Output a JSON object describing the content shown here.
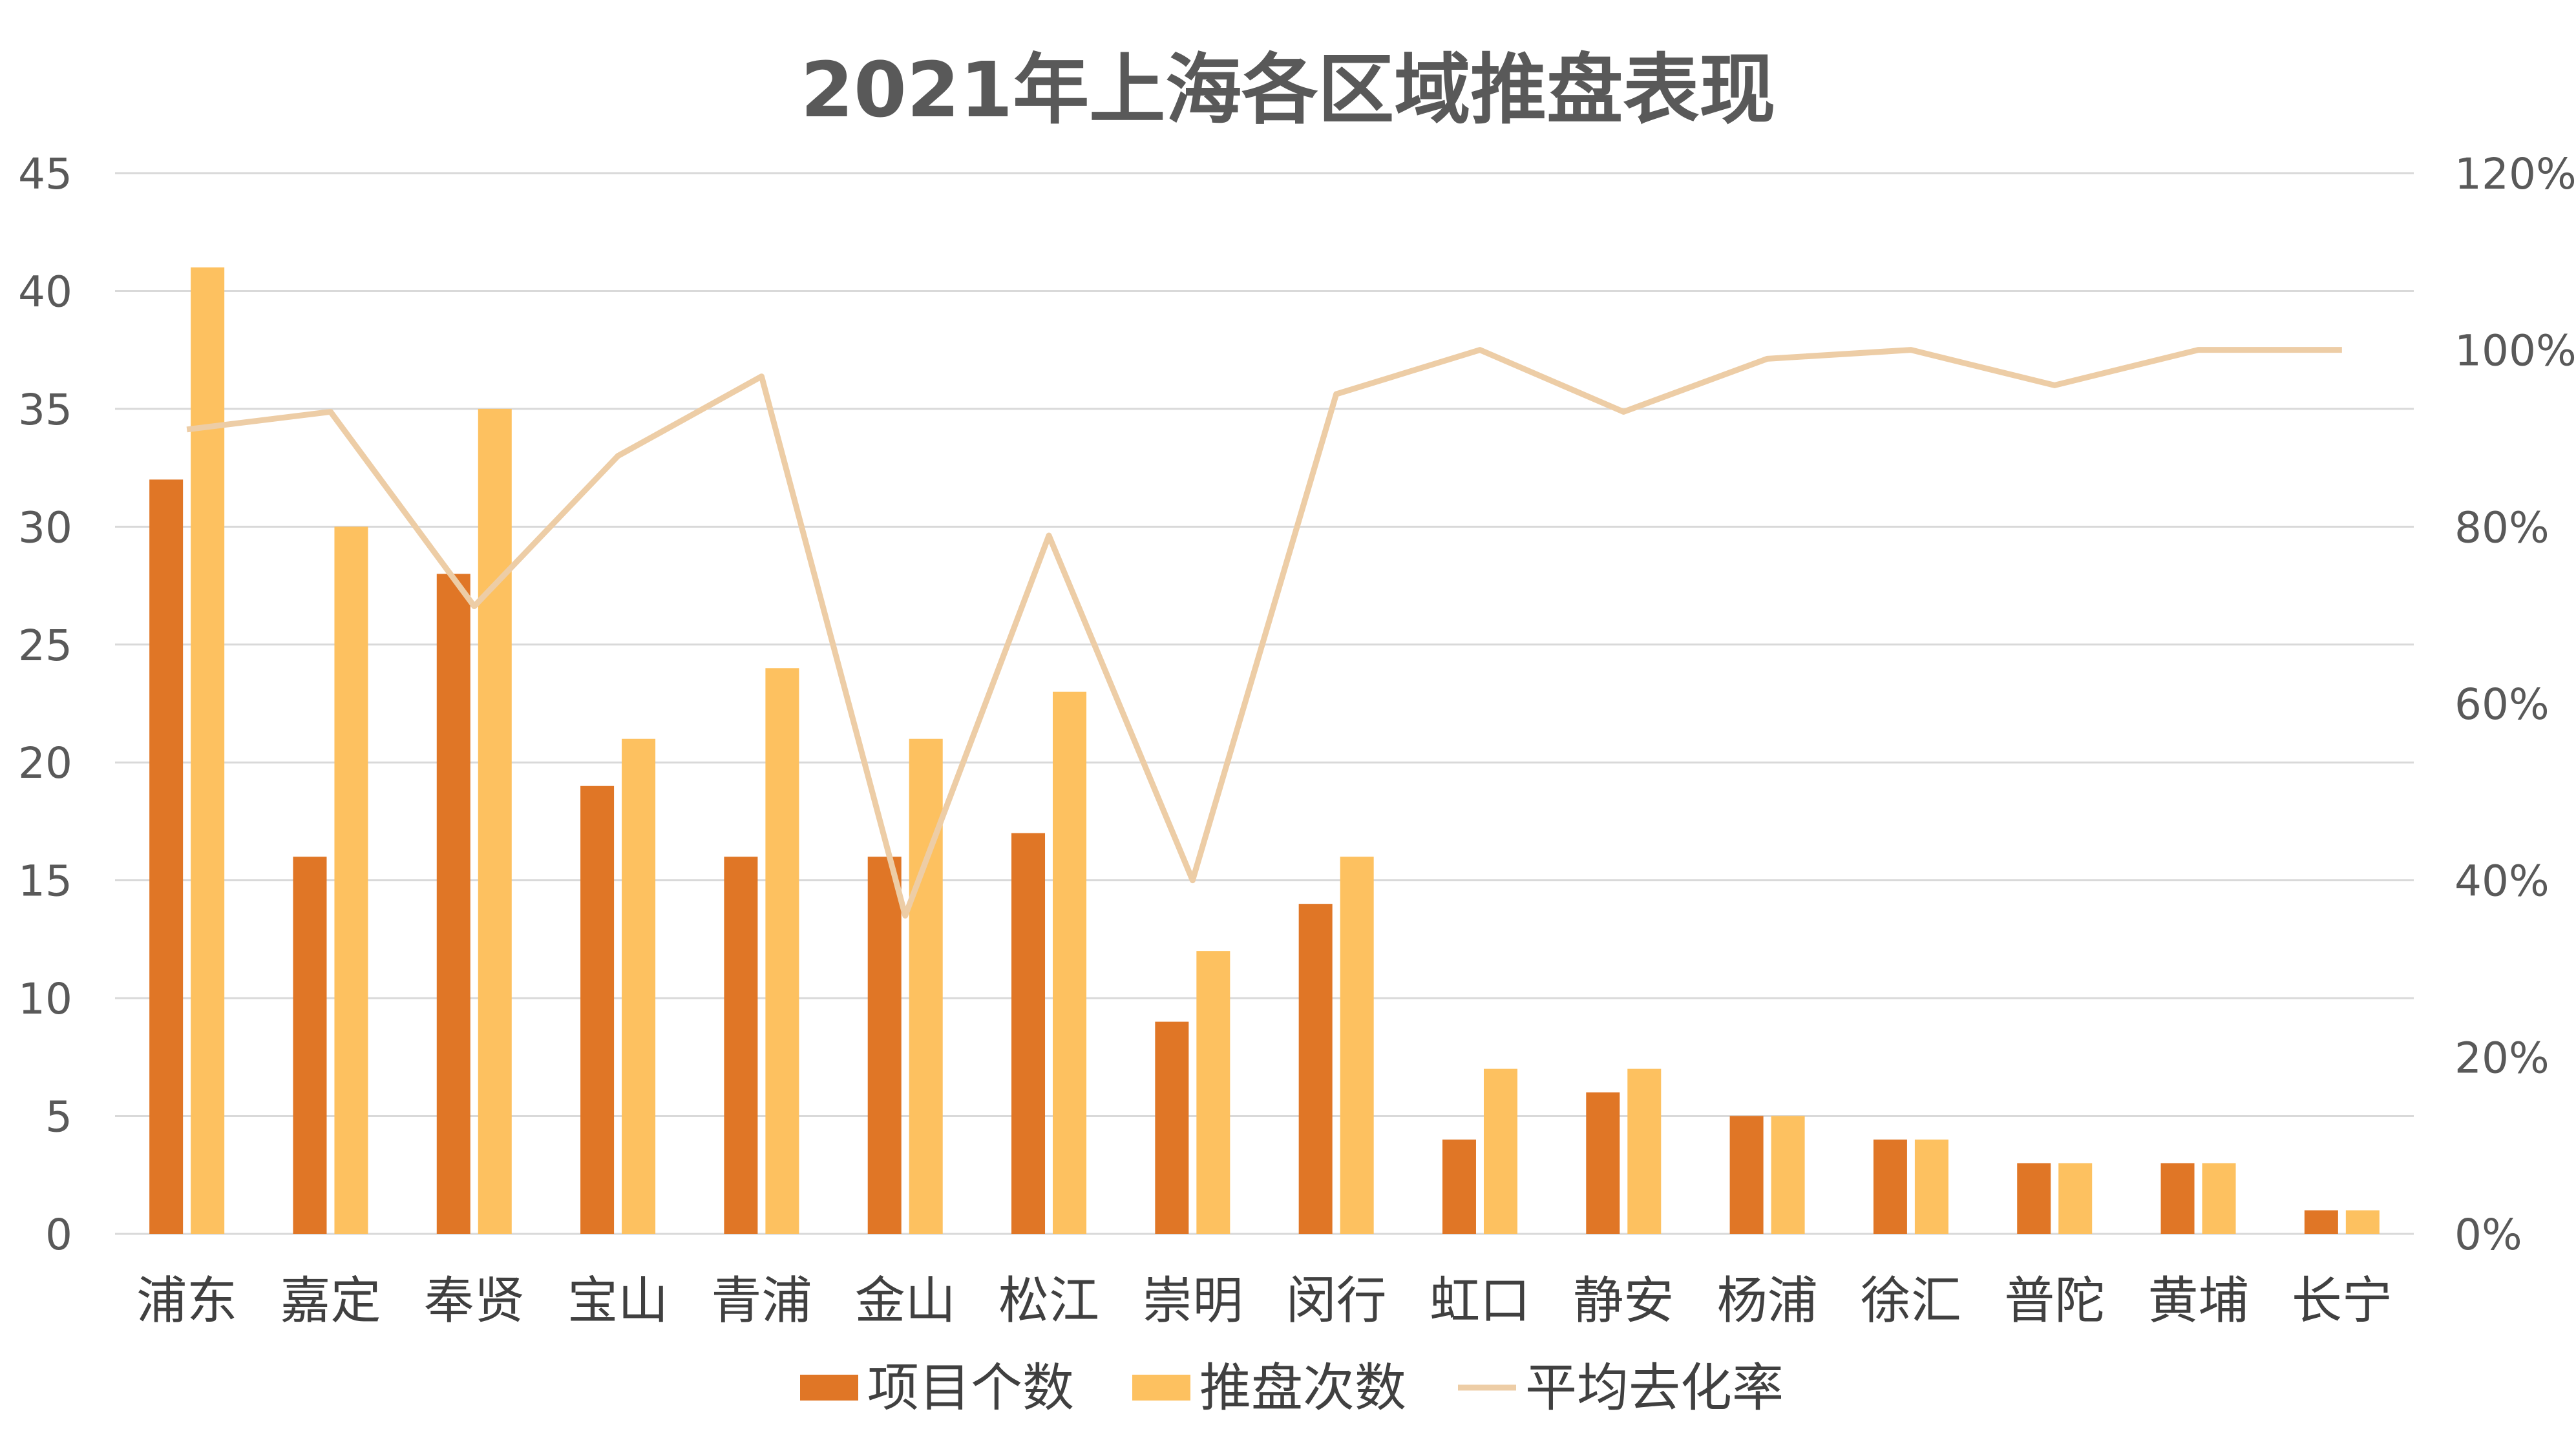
{
  "chart_data": {
    "type": "bar",
    "title": "2021年上海各区域推盘表现",
    "categories": [
      "浦东",
      "嘉定",
      "奉贤",
      "宝山",
      "青浦",
      "金山",
      "松江",
      "崇明",
      "闵行",
      "虹口",
      "静安",
      "杨浦",
      "徐汇",
      "普陀",
      "黄埔",
      "长宁"
    ],
    "series": [
      {
        "name": "项目个数",
        "kind": "bar",
        "axis": "left",
        "color": "#E07626",
        "values": [
          32,
          16,
          28,
          19,
          16,
          16,
          17,
          9,
          14,
          4,
          6,
          5,
          4,
          3,
          3,
          1
        ]
      },
      {
        "name": "推盘次数",
        "kind": "bar",
        "axis": "left",
        "color": "#FDC160",
        "values": [
          41,
          30,
          35,
          21,
          24,
          21,
          23,
          12,
          16,
          7,
          7,
          5,
          4,
          3,
          3,
          1
        ]
      },
      {
        "name": "平均去化率",
        "kind": "line",
        "axis": "right",
        "color": "#EDCDA6",
        "values": [
          0.91,
          0.93,
          0.71,
          0.88,
          0.97,
          0.36,
          0.79,
          0.4,
          0.95,
          1.0,
          0.93,
          0.99,
          1.0,
          0.96,
          1.0,
          1.0
        ]
      }
    ],
    "left_axis": {
      "min": 0,
      "max": 45,
      "step": 5,
      "ticks": [
        "0",
        "5",
        "10",
        "15",
        "20",
        "25",
        "30",
        "35",
        "40",
        "45"
      ]
    },
    "right_axis": {
      "min": 0,
      "max": 1.2,
      "step": 0.2,
      "ticks": [
        "0%",
        "20%",
        "40%",
        "60%",
        "80%",
        "100%",
        "120%"
      ]
    },
    "grid": true,
    "legend_position": "bottom"
  }
}
